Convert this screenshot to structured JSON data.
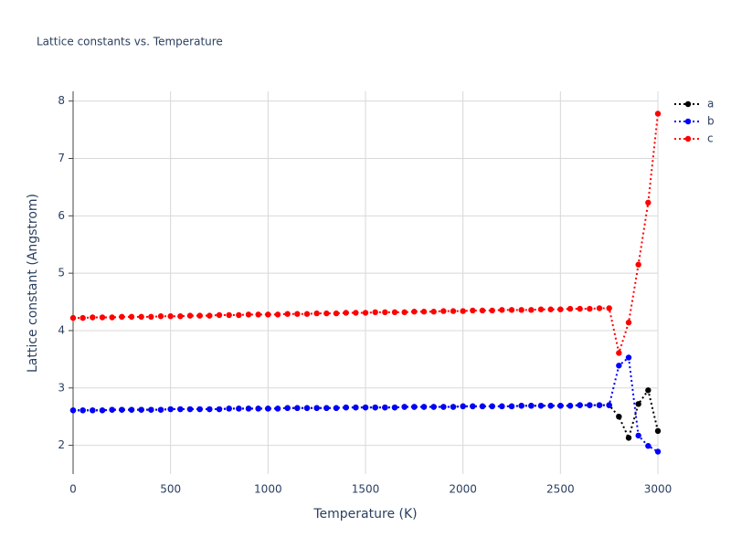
{
  "chart_data": {
    "type": "line",
    "title": "Lattice constants vs. Temperature",
    "x_label": "Temperature (K)",
    "y_label": "Lattice constant (Angstrom)",
    "x": [
      0,
      50,
      100,
      150,
      200,
      250,
      300,
      350,
      400,
      450,
      500,
      550,
      600,
      650,
      700,
      750,
      800,
      850,
      900,
      950,
      1000,
      1050,
      1100,
      1150,
      1200,
      1250,
      1300,
      1350,
      1400,
      1450,
      1500,
      1550,
      1600,
      1650,
      1700,
      1750,
      1800,
      1850,
      1900,
      1950,
      2000,
      2050,
      2100,
      2150,
      2200,
      2250,
      2300,
      2350,
      2400,
      2450,
      2500,
      2550,
      2600,
      2650,
      2700,
      2750,
      2800,
      2850,
      2900,
      2950,
      3000
    ],
    "series": [
      {
        "name": "a",
        "color": "#000000",
        "values": [
          2.61,
          2.61,
          2.61,
          2.61,
          2.62,
          2.62,
          2.62,
          2.62,
          2.62,
          2.62,
          2.63,
          2.63,
          2.63,
          2.63,
          2.63,
          2.63,
          2.64,
          2.64,
          2.64,
          2.64,
          2.64,
          2.64,
          2.65,
          2.65,
          2.65,
          2.65,
          2.65,
          2.65,
          2.66,
          2.66,
          2.66,
          2.66,
          2.66,
          2.66,
          2.67,
          2.67,
          2.67,
          2.67,
          2.67,
          2.67,
          2.68,
          2.68,
          2.68,
          2.68,
          2.68,
          2.68,
          2.69,
          2.69,
          2.69,
          2.69,
          2.69,
          2.69,
          2.7,
          2.7,
          2.7,
          2.7,
          2.5,
          2.13,
          2.72,
          2.96,
          2.25
        ]
      },
      {
        "name": "b",
        "color": "#0000ff",
        "values": [
          2.61,
          2.61,
          2.61,
          2.61,
          2.62,
          2.62,
          2.62,
          2.62,
          2.62,
          2.62,
          2.63,
          2.63,
          2.63,
          2.63,
          2.63,
          2.63,
          2.64,
          2.64,
          2.64,
          2.64,
          2.64,
          2.64,
          2.65,
          2.65,
          2.65,
          2.65,
          2.65,
          2.65,
          2.66,
          2.66,
          2.66,
          2.66,
          2.66,
          2.66,
          2.67,
          2.67,
          2.67,
          2.67,
          2.67,
          2.67,
          2.68,
          2.68,
          2.68,
          2.68,
          2.68,
          2.68,
          2.69,
          2.69,
          2.69,
          2.69,
          2.69,
          2.69,
          2.7,
          2.7,
          2.7,
          2.7,
          3.39,
          3.53,
          2.17,
          1.99,
          1.89
        ]
      },
      {
        "name": "c",
        "color": "#ff0000",
        "values": [
          4.22,
          4.22,
          4.23,
          4.23,
          4.23,
          4.24,
          4.24,
          4.24,
          4.24,
          4.25,
          4.25,
          4.25,
          4.26,
          4.26,
          4.26,
          4.27,
          4.27,
          4.27,
          4.28,
          4.28,
          4.28,
          4.28,
          4.29,
          4.29,
          4.29,
          4.3,
          4.3,
          4.3,
          4.31,
          4.31,
          4.31,
          4.32,
          4.32,
          4.32,
          4.32,
          4.33,
          4.33,
          4.33,
          4.34,
          4.34,
          4.34,
          4.35,
          4.35,
          4.35,
          4.36,
          4.36,
          4.36,
          4.36,
          4.37,
          4.37,
          4.37,
          4.38,
          4.38,
          4.38,
          4.39,
          4.39,
          3.61,
          4.14,
          5.15,
          6.23,
          7.78
        ]
      }
    ],
    "xlim": [
      0,
      3000
    ],
    "xticks": [
      0,
      500,
      1000,
      1500,
      2000,
      2500,
      3000
    ],
    "ylim": [
      1.5,
      8.17
    ],
    "yticks": [
      2,
      3,
      4,
      5,
      6,
      7,
      8
    ],
    "grid": true,
    "legend": "top-right"
  }
}
